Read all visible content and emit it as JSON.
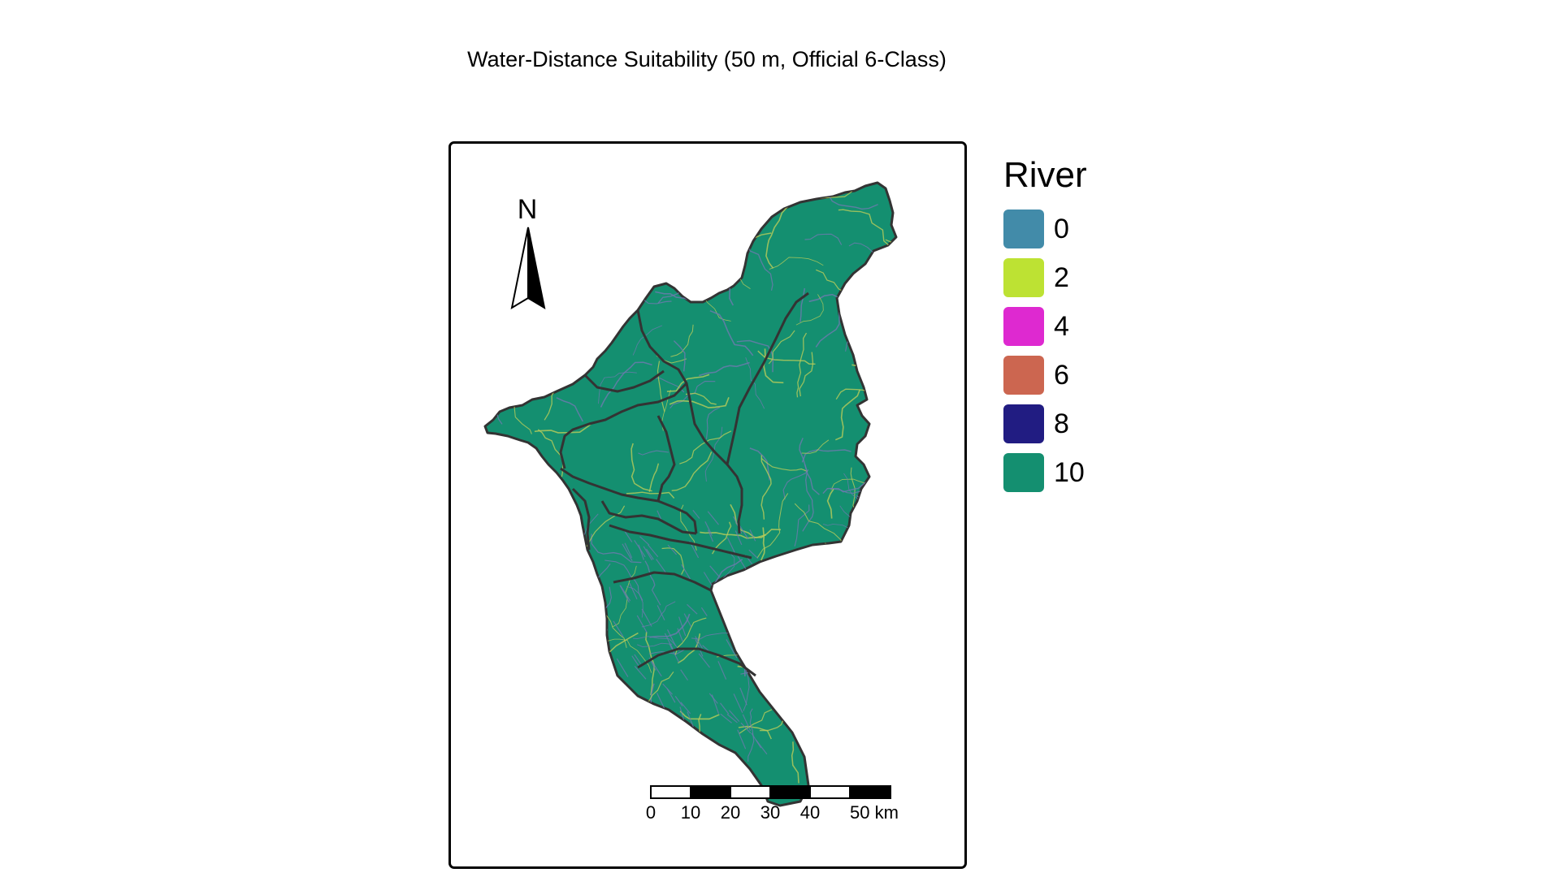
{
  "title": "Water-Distance Suitability (50 m, Official 6-Class)",
  "north_arrow": {
    "label": "N"
  },
  "legend": {
    "title": "River",
    "items": [
      {
        "label": "0",
        "color": "#428ba9"
      },
      {
        "label": "2",
        "color": "#bde233"
      },
      {
        "label": "4",
        "color": "#de29d0"
      },
      {
        "label": "6",
        "color": "#cc6650"
      },
      {
        "label": "8",
        "color": "#211c82"
      },
      {
        "label": "10",
        "color": "#148f70"
      }
    ]
  },
  "scale_bar": {
    "labels": [
      "0",
      "10",
      "20",
      "30",
      "40",
      "50 km"
    ]
  },
  "colors": {
    "land": "#148f70",
    "boundary": "#333333",
    "river_primary": "#6f79b0",
    "river_secondary": "#b9cc5a"
  }
}
